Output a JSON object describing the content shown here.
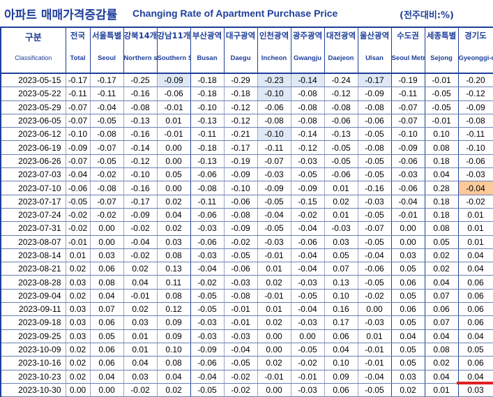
{
  "title": {
    "korean": "아파트 매매가격증감률",
    "english": "Changing Rate of Apartment Purchase Price",
    "unit": "(전주대비:%)"
  },
  "columns": [
    {
      "ko": "구분",
      "en": "Classification"
    },
    {
      "ko": "전국",
      "en": "Total"
    },
    {
      "ko": "서울특별",
      "en": "Seoul"
    },
    {
      "ko": "강북14개",
      "en": "Northern seoul"
    },
    {
      "ko": "강남11개",
      "en": "Southern Seoul"
    },
    {
      "ko": "부산광역",
      "en": "Busan"
    },
    {
      "ko": "대구광역",
      "en": "Daegu"
    },
    {
      "ko": "인천광역",
      "en": "Incheon"
    },
    {
      "ko": "광주광역",
      "en": "Gwangju"
    },
    {
      "ko": "대전광역",
      "en": "Daejeon"
    },
    {
      "ko": "울산광역",
      "en": "Ulsan"
    },
    {
      "ko": "수도권",
      "en": "Seoul Metropolitan Area"
    },
    {
      "ko": "세종특별",
      "en": "Sejong"
    },
    {
      "ko": "경기도",
      "en": "Gyeonggi-do"
    }
  ],
  "rows": [
    {
      "date": "2023-05-15",
      "values": [
        "-0.17",
        "-0.17",
        "-0.25",
        "-0.09",
        "-0.18",
        "-0.29",
        "-0.23",
        "-0.14",
        "-0.24",
        "-0.17",
        "-0.19",
        "-0.01",
        "-0.20"
      ]
    },
    {
      "date": "2023-05-22",
      "values": [
        "-0.11",
        "-0.11",
        "-0.16",
        "-0.06",
        "-0.18",
        "-0.18",
        "-0.10",
        "-0.08",
        "-0.12",
        "-0.09",
        "-0.11",
        "-0.05",
        "-0.12"
      ]
    },
    {
      "date": "2023-05-29",
      "values": [
        "-0.07",
        "-0.04",
        "-0.08",
        "-0.01",
        "-0.10",
        "-0.12",
        "-0.06",
        "-0.08",
        "-0.08",
        "-0.08",
        "-0.07",
        "-0.05",
        "-0.09"
      ]
    },
    {
      "date": "2023-06-05",
      "values": [
        "-0.07",
        "-0.05",
        "-0.13",
        "0.01",
        "-0.13",
        "-0.12",
        "-0.08",
        "-0.08",
        "-0.06",
        "-0.06",
        "-0.07",
        "-0.01",
        "-0.08"
      ]
    },
    {
      "date": "2023-06-12",
      "values": [
        "-0.10",
        "-0.08",
        "-0.16",
        "-0.01",
        "-0.11",
        "-0.21",
        "-0.10",
        "-0.14",
        "-0.13",
        "-0.05",
        "-0.10",
        "0.10",
        "-0.11"
      ]
    },
    {
      "date": "2023-06-19",
      "values": [
        "-0.09",
        "-0.07",
        "-0.14",
        "0.00",
        "-0.18",
        "-0.17",
        "-0.11",
        "-0.12",
        "-0.05",
        "-0.08",
        "-0.09",
        "0.08",
        "-0.10"
      ]
    },
    {
      "date": "2023-06-26",
      "values": [
        "-0.07",
        "-0.05",
        "-0.12",
        "0.00",
        "-0.13",
        "-0.19",
        "-0.07",
        "-0.03",
        "-0.05",
        "-0.05",
        "-0.06",
        "0.18",
        "-0.06"
      ]
    },
    {
      "date": "2023-07-03",
      "values": [
        "-0.04",
        "-0.02",
        "-0.10",
        "0.05",
        "-0.06",
        "-0.09",
        "-0.03",
        "-0.05",
        "-0.06",
        "-0.05",
        "-0.03",
        "0.04",
        "-0.03"
      ]
    },
    {
      "date": "2023-07-10",
      "values": [
        "-0.06",
        "-0.08",
        "-0.16",
        "0.00",
        "-0.08",
        "-0.10",
        "-0.09",
        "-0.09",
        "0.01",
        "-0.16",
        "-0.06",
        "0.28",
        "-0.04"
      ]
    },
    {
      "date": "2023-07-17",
      "values": [
        "-0.05",
        "-0.07",
        "-0.17",
        "0.02",
        "-0.11",
        "-0.06",
        "-0.05",
        "-0.15",
        "0.02",
        "-0.03",
        "-0.04",
        "0.18",
        "-0.02"
      ]
    },
    {
      "date": "2023-07-24",
      "values": [
        "-0.02",
        "-0.02",
        "-0.09",
        "0.04",
        "-0.06",
        "-0.08",
        "-0.04",
        "-0.02",
        "0.01",
        "-0.05",
        "-0.01",
        "0.18",
        "0.01"
      ]
    },
    {
      "date": "2023-07-31",
      "values": [
        "-0.02",
        "0.00",
        "-0.02",
        "0.02",
        "-0.03",
        "-0.09",
        "-0.05",
        "-0.04",
        "-0.03",
        "-0.07",
        "0.00",
        "0.08",
        "0.01"
      ]
    },
    {
      "date": "2023-08-07",
      "values": [
        "-0.01",
        "0.00",
        "-0.04",
        "0.03",
        "-0.06",
        "-0.02",
        "-0.03",
        "-0.06",
        "0.03",
        "-0.05",
        "0.00",
        "0.05",
        "0.01"
      ]
    },
    {
      "date": "2023-08-14",
      "values": [
        "0.01",
        "0.03",
        "-0.02",
        "0.08",
        "-0.03",
        "-0.05",
        "-0.01",
        "-0.04",
        "0.05",
        "-0.04",
        "0.03",
        "0.02",
        "0.04"
      ]
    },
    {
      "date": "2023-08-21",
      "values": [
        "0.02",
        "0.06",
        "0.02",
        "0.13",
        "-0.04",
        "-0.06",
        "0.01",
        "-0.04",
        "0.07",
        "-0.06",
        "0.05",
        "0.02",
        "0.04"
      ]
    },
    {
      "date": "2023-08-28",
      "values": [
        "0.03",
        "0.08",
        "0.04",
        "0.11",
        "-0.02",
        "-0.03",
        "0.02",
        "-0.03",
        "0.13",
        "-0.05",
        "0.06",
        "0.04",
        "0.06"
      ]
    },
    {
      "date": "2023-09-04",
      "values": [
        "0.02",
        "0.04",
        "-0.01",
        "0.08",
        "-0.05",
        "-0.08",
        "-0.01",
        "-0.05",
        "0.10",
        "-0.02",
        "0.05",
        "0.07",
        "0.06"
      ]
    },
    {
      "date": "2023-09-11",
      "values": [
        "0.03",
        "0.07",
        "0.02",
        "0.12",
        "-0.05",
        "-0.01",
        "0.01",
        "-0.04",
        "0.16",
        "0.00",
        "0.06",
        "0.06",
        "0.06"
      ]
    },
    {
      "date": "2023-09-18",
      "values": [
        "0.03",
        "0.06",
        "0.03",
        "0.09",
        "-0.03",
        "-0.01",
        "0.02",
        "-0.03",
        "0.17",
        "-0.03",
        "0.05",
        "0.07",
        "0.06"
      ]
    },
    {
      "date": "2023-09-25",
      "values": [
        "0.03",
        "0.05",
        "0.01",
        "0.09",
        "-0.03",
        "-0.03",
        "0.00",
        "0.00",
        "0.06",
        "0.01",
        "0.04",
        "0.04",
        "0.04"
      ]
    },
    {
      "date": "2023-10-09",
      "values": [
        "0.02",
        "0.06",
        "0.01",
        "0.10",
        "-0.09",
        "-0.04",
        "0.00",
        "-0.05",
        "0.04",
        "-0.01",
        "0.05",
        "0.08",
        "0.05"
      ]
    },
    {
      "date": "2023-10-16",
      "values": [
        "0.02",
        "0.06",
        "0.04",
        "0.08",
        "-0.06",
        "-0.05",
        "0.02",
        "-0.02",
        "0.10",
        "-0.01",
        "0.05",
        "0.02",
        "0.06"
      ]
    },
    {
      "date": "2023-10-23",
      "values": [
        "0.02",
        "0.04",
        "0.03",
        "0.04",
        "-0.04",
        "-0.02",
        "-0.01",
        "-0.01",
        "0.09",
        "-0.04",
        "0.03",
        "0.04",
        "0.04"
      ]
    },
    {
      "date": "2023-10-30",
      "values": [
        "0.00",
        "0.00",
        "-0.02",
        "0.02",
        "-0.05",
        "-0.02",
        "0.00",
        "-0.03",
        "0.06",
        "-0.05",
        "0.02",
        "0.01",
        "0.03"
      ]
    }
  ],
  "highlights": {
    "blue": [
      [
        0,
        3
      ],
      [
        0,
        6
      ],
      [
        0,
        7
      ],
      [
        0,
        9
      ],
      [
        1,
        6
      ],
      [
        4,
        6
      ]
    ],
    "orange": [
      [
        8,
        12
      ]
    ],
    "red_box": [
      23,
      12
    ]
  },
  "colors": {
    "title": "#1f3f9a",
    "highlight_blue": "#dfe8f5",
    "highlight_orange": "#fbc99a",
    "red_box": "#e02020"
  }
}
